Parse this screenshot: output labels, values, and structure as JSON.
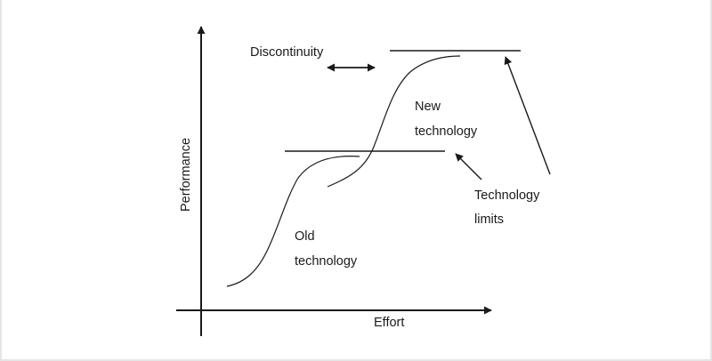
{
  "diagram": {
    "x_axis_label": "Effort",
    "y_axis_label": "Performance",
    "discontinuity_label": "Discontinuity",
    "old_technology": {
      "line1": "Old",
      "line2": "technology"
    },
    "new_technology": {
      "line1": "New",
      "line2": "technology"
    },
    "technology_limits": {
      "line1": "Technology",
      "line2": "limits"
    },
    "colors": {
      "ink": "#1a1a1a",
      "frame": "#e6e6e6",
      "background": "#ffffff"
    }
  }
}
